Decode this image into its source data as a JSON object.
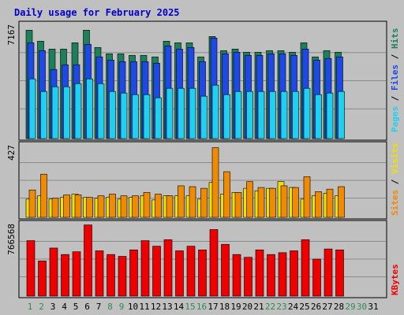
{
  "title": "Daily usage for February 2025",
  "colors": {
    "background": "#c0c0c0",
    "panel_bg": "#c0c0c0",
    "title": "#0000cc",
    "hits": "#1e7f5b",
    "files": "#1e49e6",
    "pages": "#20d0f0",
    "visits": "#f0e000",
    "sites": "#f08a00",
    "kbytes": "#ee0000",
    "weekday_label": "#000000",
    "weekend_label": "#2e8b57"
  },
  "chart_data": [
    {
      "type": "bar",
      "panel": "hits",
      "ymax_label": "7167",
      "ymax": 7167,
      "legend": [
        "Pages",
        "Files",
        "Hits"
      ],
      "categories": [
        "1",
        "2",
        "3",
        "4",
        "5",
        "6",
        "7",
        "8",
        "9",
        "10",
        "11",
        "12",
        "13",
        "14",
        "15",
        "16",
        "17",
        "18",
        "19",
        "20",
        "21",
        "22",
        "23",
        "24",
        "25",
        "26",
        "27",
        "28"
      ],
      "series": [
        {
          "name": "Hits",
          "values": [
            6900,
            6200,
            5700,
            5700,
            6100,
            6900,
            5800,
            5400,
            5400,
            5300,
            5300,
            5200,
            6200,
            6100,
            6100,
            5200,
            6500,
            5600,
            5700,
            5500,
            5500,
            5600,
            5600,
            5500,
            6100,
            5200,
            5600,
            5500
          ]
        },
        {
          "name": "Files",
          "values": [
            6100,
            5600,
            4400,
            4700,
            4700,
            6000,
            5200,
            5000,
            4900,
            4900,
            4900,
            4800,
            5900,
            5700,
            5800,
            4900,
            6400,
            5400,
            5500,
            5300,
            5300,
            5400,
            5400,
            5300,
            5700,
            5000,
            5100,
            5200
          ]
        },
        {
          "name": "Pages",
          "values": [
            3800,
            3000,
            3300,
            3300,
            3500,
            3800,
            3500,
            3000,
            2900,
            2800,
            2800,
            2600,
            3200,
            3200,
            3200,
            2700,
            3400,
            2800,
            3000,
            3000,
            3000,
            3000,
            3000,
            3000,
            3200,
            2800,
            2900,
            3000
          ]
        }
      ]
    },
    {
      "type": "bar",
      "panel": "visits",
      "ymax_label": "427",
      "ymax": 427,
      "legend": [
        "Sites",
        "Visits"
      ],
      "categories": [
        "1",
        "2",
        "3",
        "4",
        "5",
        "6",
        "7",
        "8",
        "9",
        "10",
        "11",
        "12",
        "13",
        "14",
        "15",
        "16",
        "17",
        "18",
        "19",
        "20",
        "21",
        "22",
        "23",
        "24",
        "25",
        "26",
        "27",
        "28"
      ],
      "series": [
        {
          "name": "Visits",
          "values": [
            110,
            130,
            110,
            120,
            140,
            120,
            115,
            120,
            110,
            120,
            130,
            105,
            130,
            130,
            130,
            110,
            210,
            140,
            150,
            175,
            160,
            175,
            215,
            180,
            110,
            130,
            145,
            130
          ]
        },
        {
          "name": "Sites",
          "values": [
            165,
            260,
            115,
            135,
            135,
            120,
            130,
            140,
            130,
            130,
            150,
            140,
            130,
            190,
            185,
            175,
            420,
            275,
            150,
            215,
            180,
            175,
            190,
            180,
            245,
            155,
            170,
            185
          ]
        }
      ]
    },
    {
      "type": "bar",
      "panel": "kbytes",
      "ymax_label": "766568",
      "ymax": 766568,
      "legend": [
        "KBytes"
      ],
      "categories": [
        "1",
        "2",
        "3",
        "4",
        "5",
        "6",
        "7",
        "8",
        "9",
        "10",
        "11",
        "12",
        "13",
        "14",
        "15",
        "16",
        "17",
        "18",
        "19",
        "20",
        "21",
        "22",
        "23",
        "24",
        "25",
        "26",
        "27",
        "28"
      ],
      "series": [
        {
          "name": "KBytes",
          "values": [
            600000,
            380000,
            520000,
            450000,
            480000,
            770000,
            490000,
            450000,
            430000,
            500000,
            600000,
            540000,
            610000,
            490000,
            540000,
            500000,
            720000,
            560000,
            450000,
            420000,
            500000,
            450000,
            470000,
            490000,
            610000,
            400000,
            510000,
            500000
          ]
        }
      ]
    }
  ],
  "days": [
    "1",
    "2",
    "3",
    "4",
    "5",
    "6",
    "7",
    "8",
    "9",
    "10",
    "11",
    "12",
    "13",
    "14",
    "15",
    "16",
    "17",
    "18",
    "19",
    "20",
    "21",
    "22",
    "23",
    "24",
    "25",
    "26",
    "27",
    "28",
    "29",
    "30",
    "31"
  ],
  "weekend_days": [
    "1",
    "2",
    "8",
    "9",
    "15",
    "16",
    "22",
    "23",
    "29",
    "30"
  ]
}
